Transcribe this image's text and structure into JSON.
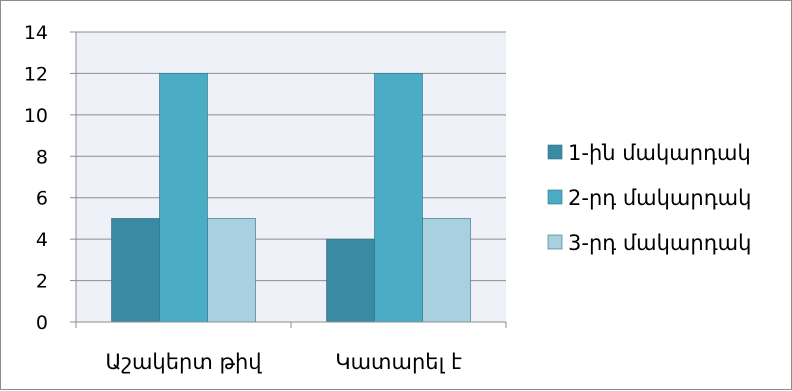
{
  "chart_data": {
    "type": "bar",
    "title": "",
    "xlabel": "",
    "ylabel": "",
    "categories": [
      "Աշակերտ թիվ",
      "Կատարել է"
    ],
    "series": [
      {
        "name": "1-ին մակարդակ",
        "values": [
          5,
          4
        ],
        "color": "#3a8aa3"
      },
      {
        "name": "2-րդ մակարդակ",
        "values": [
          12,
          12
        ],
        "color": "#4bacc6"
      },
      {
        "name": "3-րդ մակարդակ",
        "values": [
          5,
          5
        ],
        "color": "#a9d0df"
      }
    ],
    "ylim": [
      0,
      14
    ],
    "yticks": [
      0,
      2,
      4,
      6,
      8,
      10,
      12,
      14
    ],
    "grid": true,
    "legend": "right",
    "plot_background": "#eef2f8",
    "grid_color": "#8c8c8c"
  }
}
